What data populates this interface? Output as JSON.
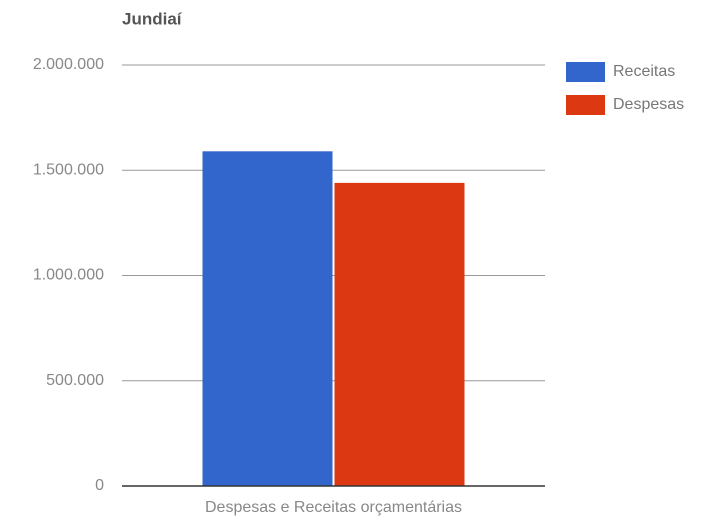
{
  "chart_data": {
    "type": "bar",
    "title": "Jundiaí",
    "categories": [
      "Despesas e Receitas orçamentárias"
    ],
    "series": [
      {
        "name": "Receitas",
        "color": "#3366cc",
        "values": [
          1590000
        ]
      },
      {
        "name": "Despesas",
        "color": "#dc3912",
        "values": [
          1440000
        ]
      }
    ],
    "ylim": [
      0,
      2000000
    ],
    "yticks": [
      0,
      {
        "value": 500000,
        "label": "500.000"
      },
      {
        "value": 1000000,
        "label": "1.000.000"
      },
      {
        "value": 1500000,
        "label": "1.500.000"
      },
      {
        "value": 2000000,
        "label": "2.000.000"
      }
    ],
    "grid": true,
    "legend": "right"
  }
}
